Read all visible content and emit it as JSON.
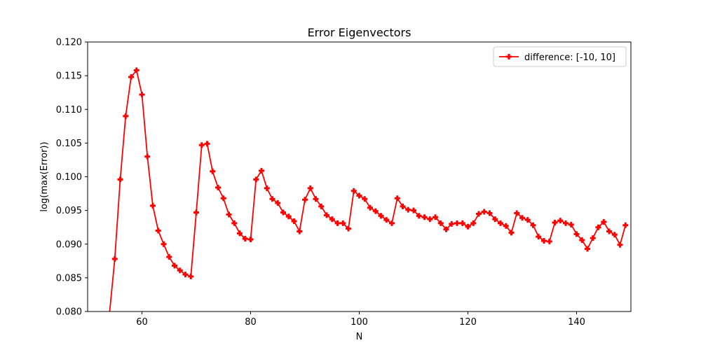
{
  "chart_data": {
    "type": "line",
    "title": "Error Eigenvectors",
    "xlabel": "N",
    "ylabel": "log(max(Error))",
    "xlim": [
      50,
      150
    ],
    "ylim": [
      0.08,
      0.12
    ],
    "xticks": [
      60,
      80,
      100,
      120,
      140
    ],
    "yticks": [
      0.08,
      0.085,
      0.09,
      0.095,
      0.1,
      0.105,
      0.11,
      0.115,
      0.12
    ],
    "xtick_labels": [
      "60",
      "80",
      "100",
      "120",
      "140"
    ],
    "ytick_labels": [
      "0.080",
      "0.085",
      "0.090",
      "0.095",
      "0.100",
      "0.105",
      "0.110",
      "0.115",
      "0.120"
    ],
    "grid": false,
    "legend_position": "top-right",
    "series": [
      {
        "name": "difference: [-10, 10]",
        "color": "#ff0000",
        "marker": "plus",
        "x": [
          54,
          55,
          56,
          57,
          58,
          59,
          60,
          61,
          62,
          63,
          64,
          65,
          66,
          67,
          68,
          69,
          70,
          71,
          72,
          73,
          74,
          75,
          76,
          77,
          78,
          79,
          80,
          81,
          82,
          83,
          84,
          85,
          86,
          87,
          88,
          89,
          90,
          91,
          92,
          93,
          94,
          95,
          96,
          97,
          98,
          99,
          100,
          101,
          102,
          103,
          104,
          105,
          106,
          107,
          108,
          109,
          110,
          111,
          112,
          113,
          114,
          115,
          116,
          117,
          118,
          119,
          120,
          121,
          122,
          123,
          124,
          125,
          126,
          127,
          128,
          129,
          130,
          131,
          132,
          133,
          134,
          135,
          136,
          137,
          138,
          139,
          140,
          141,
          142,
          143,
          144,
          145,
          146,
          147,
          148,
          149
        ],
        "y": [
          0.0795,
          0.0878,
          0.0996,
          0.109,
          0.1148,
          0.1158,
          0.1122,
          0.103,
          0.0957,
          0.092,
          0.09,
          0.0881,
          0.0868,
          0.0861,
          0.0855,
          0.0852,
          0.0947,
          0.1047,
          0.1049,
          0.1008,
          0.0984,
          0.0968,
          0.0944,
          0.0931,
          0.0916,
          0.0908,
          0.0907,
          0.0996,
          0.1009,
          0.0983,
          0.0967,
          0.0961,
          0.0947,
          0.0941,
          0.0934,
          0.0919,
          0.0966,
          0.0983,
          0.0967,
          0.0956,
          0.0943,
          0.0937,
          0.0931,
          0.0931,
          0.0923,
          0.0979,
          0.0972,
          0.0967,
          0.0954,
          0.0949,
          0.0942,
          0.0936,
          0.0931,
          0.0968,
          0.0956,
          0.0951,
          0.095,
          0.0942,
          0.094,
          0.0937,
          0.094,
          0.0931,
          0.0922,
          0.093,
          0.0931,
          0.0931,
          0.0926,
          0.0931,
          0.0945,
          0.0948,
          0.0946,
          0.0937,
          0.0931,
          0.0927,
          0.0917,
          0.0946,
          0.0939,
          0.0936,
          0.0928,
          0.0911,
          0.0905,
          0.0904,
          0.0932,
          0.0935,
          0.0931,
          0.0929,
          0.0915,
          0.0906,
          0.0893,
          0.0909,
          0.0925,
          0.0933,
          0.0919,
          0.0914,
          0.0899,
          0.0928
        ]
      }
    ]
  }
}
